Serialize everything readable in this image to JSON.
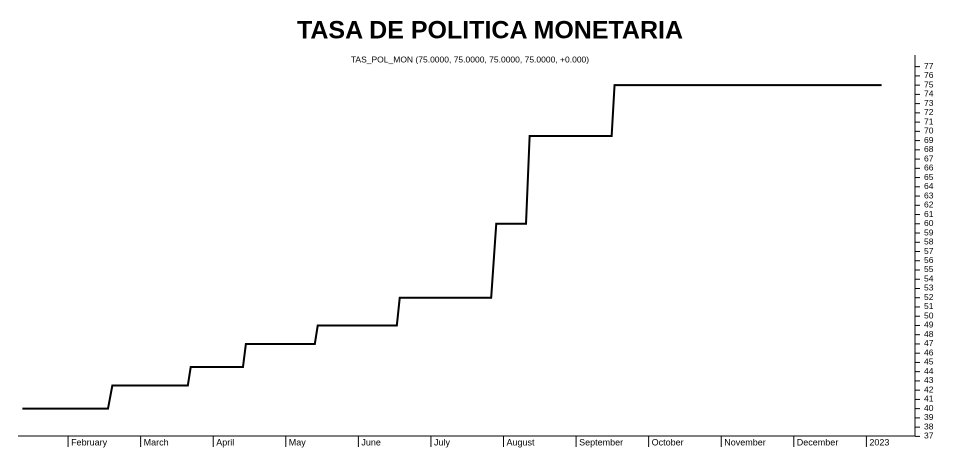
{
  "chart_data": {
    "type": "line",
    "title": "TASA DE POLITICA MONETARIA",
    "subtitle": "TAS_POL_MON (75.0000, 75.0000, 75.0000, 75.0000, +0.000)",
    "x": [
      1.37,
      2.55,
      2.61,
      3.65,
      3.69,
      4.41,
      4.45,
      5.4,
      5.44,
      6.53,
      6.57,
      7.83,
      7.9,
      8.31,
      8.36,
      9.49,
      9.53,
      13.21
    ],
    "series": [
      {
        "name": "TAS_POL_MON",
        "color": "#000000",
        "values": [
          40,
          40,
          42.5,
          42.5,
          44.5,
          44.5,
          47,
          47,
          49,
          49,
          52,
          52,
          60,
          60,
          69.5,
          69.5,
          75,
          75
        ]
      }
    ],
    "xlim": [
      1.31,
      13.67
    ],
    "xticks": [
      {
        "value": 2,
        "label": "February"
      },
      {
        "value": 3,
        "label": "March"
      },
      {
        "value": 4,
        "label": "April"
      },
      {
        "value": 5,
        "label": "May"
      },
      {
        "value": 6,
        "label": "June"
      },
      {
        "value": 7,
        "label": "July"
      },
      {
        "value": 8,
        "label": "August"
      },
      {
        "value": 9,
        "label": "September"
      },
      {
        "value": 10,
        "label": "October"
      },
      {
        "value": 11,
        "label": "November"
      },
      {
        "value": 12,
        "label": "December"
      },
      {
        "value": 13,
        "label": "2023"
      }
    ],
    "ylim": [
      36.5,
      78
    ],
    "yticks": [
      37,
      38,
      39,
      40,
      41,
      42,
      43,
      44,
      45,
      46,
      47,
      48,
      49,
      50,
      51,
      52,
      53,
      54,
      55,
      56,
      57,
      58,
      59,
      60,
      61,
      62,
      63,
      64,
      65,
      66,
      67,
      68,
      69,
      70,
      71,
      72,
      73,
      74,
      75,
      76,
      77
    ],
    "grid": false
  }
}
